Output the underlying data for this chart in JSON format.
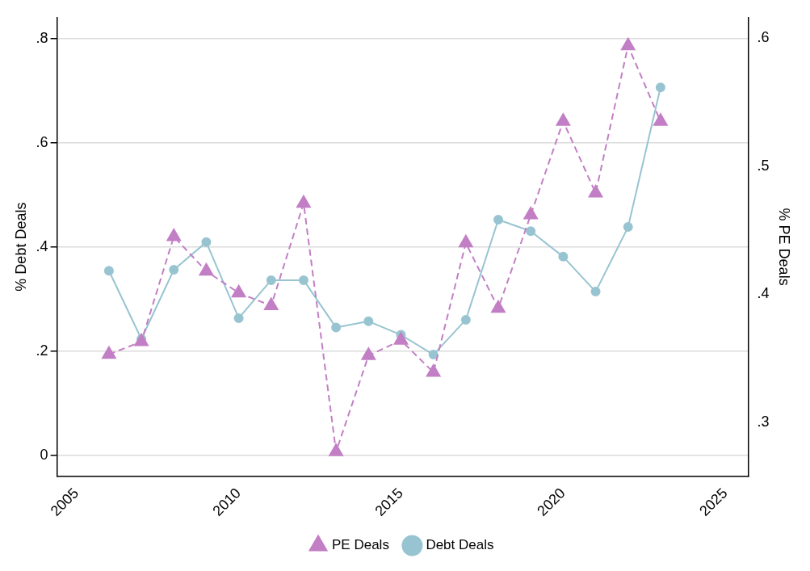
{
  "chart_data": {
    "type": "line",
    "x": [
      2006,
      2007,
      2008,
      2009,
      2010,
      2011,
      2012,
      2013,
      2014,
      2015,
      2016,
      2017,
      2018,
      2019,
      2020,
      2021,
      2022,
      2023
    ],
    "series": [
      {
        "name": "Debt Deals",
        "color": "#98c4d1",
        "marker": "circle",
        "line_style": "solid",
        "values": [
          0.354,
          0.223,
          0.356,
          0.409,
          0.263,
          0.336,
          0.336,
          0.245,
          0.257,
          0.231,
          0.193,
          0.26,
          0.452,
          0.43,
          0.381,
          0.314,
          0.438,
          0.706
        ]
      },
      {
        "name": "PE Deals",
        "color": "#c27fc5",
        "marker": "triangle",
        "line_style": "dashed",
        "axis": "y2",
        "values": [
          0.353,
          0.363,
          0.445,
          0.418,
          0.401,
          0.391,
          0.471,
          0.277,
          0.352,
          0.364,
          0.339,
          0.44,
          0.389,
          0.462,
          0.535,
          0.479,
          0.594,
          0.535
        ]
      }
    ],
    "ylabel": "% Debt Deals",
    "y2label": "% PE Deals",
    "xlim": [
      2004.4,
      2025.7
    ],
    "xticks": [
      2005,
      2010,
      2015,
      2020,
      2025
    ],
    "ylim": [
      -0.04,
      0.84
    ],
    "yticks": [
      0,
      {
        "value": 0.2,
        "label": ".2"
      },
      {
        "value": 0.4,
        "label": ".4"
      },
      {
        "value": 0.6,
        "label": ".6"
      },
      {
        "value": 0.8,
        "label": ".8"
      }
    ],
    "y2lim": [
      0.258,
      0.616
    ],
    "y2ticks": [
      {
        "value": 0.3,
        "label": ".3"
      },
      {
        "value": 0.4,
        "label": ".4"
      },
      {
        "value": 0.5,
        "label": ".5"
      },
      {
        "value": 0.6,
        "label": ".6"
      }
    ],
    "grid": "y",
    "legend": "bottom"
  }
}
